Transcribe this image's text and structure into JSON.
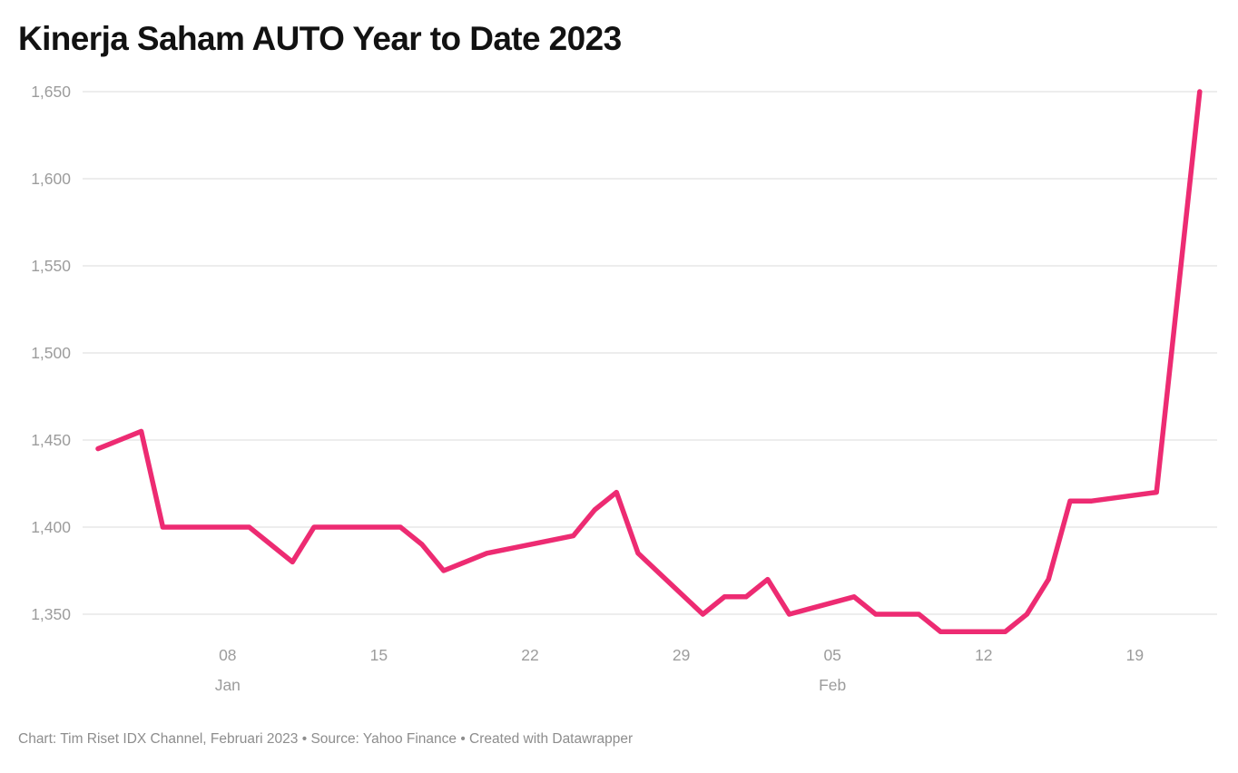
{
  "title": "Kinerja Saham AUTO Year to Date 2023",
  "footer": {
    "text": "Chart: Tim Riset IDX Channel, Februari 2023 • Source: Yahoo Finance • Created with Datawrapper"
  },
  "colors": {
    "line": "#ed2b72",
    "grid": "#e7e7e7",
    "tick_label": "#9c9c9c",
    "title_text": "#121212",
    "footer_text": "#8d8d8d",
    "background": "#ffffff"
  },
  "chart_data": {
    "type": "line",
    "title": "Kinerja Saham AUTO Year to Date 2023",
    "xlabel": "",
    "ylabel": "",
    "x_range": [
      "2023-01-02",
      "2023-02-22"
    ],
    "ylim": [
      1340,
      1650
    ],
    "grid": "horizontal",
    "legend": "none",
    "y_ticks": [
      1650,
      1600,
      1550,
      1500,
      1450,
      1400,
      1350
    ],
    "y_tick_labels": [
      "1,650",
      "1,600",
      "1,550",
      "1,500",
      "1,450",
      "1,400",
      "1,350"
    ],
    "x_ticks": [
      {
        "date": "2023-01-08",
        "label": "08",
        "month_label": "Jan"
      },
      {
        "date": "2023-01-15",
        "label": "15",
        "month_label": ""
      },
      {
        "date": "2023-01-22",
        "label": "22",
        "month_label": ""
      },
      {
        "date": "2023-01-29",
        "label": "29",
        "month_label": ""
      },
      {
        "date": "2023-02-05",
        "label": "05",
        "month_label": "Feb"
      },
      {
        "date": "2023-02-12",
        "label": "12",
        "month_label": ""
      },
      {
        "date": "2023-02-19",
        "label": "19",
        "month_label": ""
      }
    ],
    "series": [
      {
        "name": "AUTO",
        "color": "#ed2b72",
        "points": [
          [
            "2023-01-02",
            1445
          ],
          [
            "2023-01-03",
            1450
          ],
          [
            "2023-01-04",
            1455
          ],
          [
            "2023-01-05",
            1400
          ],
          [
            "2023-01-06",
            1400
          ],
          [
            "2023-01-09",
            1400
          ],
          [
            "2023-01-10",
            1390
          ],
          [
            "2023-01-11",
            1380
          ],
          [
            "2023-01-12",
            1400
          ],
          [
            "2023-01-13",
            1400
          ],
          [
            "2023-01-16",
            1400
          ],
          [
            "2023-01-17",
            1390
          ],
          [
            "2023-01-18",
            1375
          ],
          [
            "2023-01-19",
            1380
          ],
          [
            "2023-01-20",
            1385
          ],
          [
            "2023-01-24",
            1395
          ],
          [
            "2023-01-25",
            1410
          ],
          [
            "2023-01-26",
            1420
          ],
          [
            "2023-01-27",
            1385
          ],
          [
            "2023-01-30",
            1350
          ],
          [
            "2023-01-31",
            1360
          ],
          [
            "2023-02-01",
            1360
          ],
          [
            "2023-02-02",
            1370
          ],
          [
            "2023-02-03",
            1350
          ],
          [
            "2023-02-06",
            1360
          ],
          [
            "2023-02-07",
            1350
          ],
          [
            "2023-02-08",
            1350
          ],
          [
            "2023-02-09",
            1350
          ],
          [
            "2023-02-10",
            1340
          ],
          [
            "2023-02-13",
            1340
          ],
          [
            "2023-02-14",
            1350
          ],
          [
            "2023-02-15",
            1370
          ],
          [
            "2023-02-16",
            1415
          ],
          [
            "2023-02-17",
            1415
          ],
          [
            "2023-02-20",
            1420
          ],
          [
            "2023-02-21",
            1535
          ],
          [
            "2023-02-22",
            1650
          ]
        ]
      }
    ]
  }
}
